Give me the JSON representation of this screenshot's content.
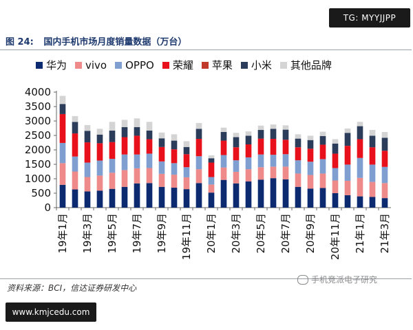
{
  "badge_text": "TG: MYYJJPP",
  "figure": {
    "number": "图 24:",
    "title": "国内手机市场月度销量数据（万台）"
  },
  "source_text": "资料来源：BCI，信达证券研发中心",
  "watermark_text": "手机竞派电子研究",
  "site_badge_text": "www.kmjcedu.com",
  "chart_data": {
    "type": "bar",
    "stacked": true,
    "ylim": [
      0,
      4000
    ],
    "yticks": [
      0,
      500,
      1000,
      1500,
      2000,
      2500,
      3000,
      3500,
      4000
    ],
    "grid": false,
    "legend_position": "top",
    "categories": [
      "19年1月",
      "19年2月",
      "19年3月",
      "19年4月",
      "19年5月",
      "19年6月",
      "19年7月",
      "19年8月",
      "19年9月",
      "19年10月",
      "19年11月",
      "19年12月",
      "20年1月",
      "20年2月",
      "20年3月",
      "20年4月",
      "20年5月",
      "20年6月",
      "20年7月",
      "20年8月",
      "20年9月",
      "20年10月",
      "20年11月",
      "20年12月",
      "21年1月",
      "21年2月",
      "21年3月"
    ],
    "tick_labels": [
      "19年1月",
      "",
      "19年3月",
      "",
      "19年5月",
      "",
      "19年7月",
      "",
      "19年9月",
      "",
      "19年11月",
      "",
      "20年1月",
      "",
      "20年3月",
      "",
      "20年5月",
      "",
      "20年7月",
      "",
      "20年9月",
      "",
      "20年11月",
      "",
      "21年1月",
      "",
      "21年3月"
    ],
    "series": [
      {
        "name": "华为",
        "color": "#0b2a6f",
        "values": [
          790,
          630,
          560,
          590,
          650,
          720,
          840,
          850,
          720,
          690,
          640,
          850,
          520,
          960,
          840,
          910,
          970,
          1020,
          980,
          720,
          660,
          680,
          500,
          430,
          390,
          370,
          330
        ]
      },
      {
        "name": "vivo",
        "color": "#ef8a8a",
        "values": [
          750,
          620,
          500,
          520,
          560,
          580,
          520,
          520,
          450,
          450,
          410,
          480,
          280,
          430,
          400,
          420,
          430,
          400,
          440,
          460,
          470,
          500,
          440,
          500,
          640,
          520,
          520
        ]
      },
      {
        "name": "OPPO",
        "color": "#7f9fd0",
        "values": [
          700,
          520,
          500,
          520,
          480,
          540,
          480,
          500,
          430,
          400,
          350,
          450,
          260,
          430,
          400,
          410,
          440,
          410,
          430,
          460,
          460,
          500,
          430,
          560,
          690,
          600,
          560
        ]
      },
      {
        "name": "荣耀",
        "color": "#e8101a",
        "values": [
          1000,
          800,
          700,
          600,
          580,
          600,
          650,
          500,
          500,
          480,
          450,
          600,
          500,
          500,
          450,
          450,
          550,
          550,
          500,
          450,
          450,
          500,
          500,
          650,
          650,
          600,
          560
        ]
      },
      {
        "name": "苹果",
        "color": "#c0392b",
        "values": [
          0,
          0,
          0,
          0,
          0,
          0,
          0,
          0,
          0,
          0,
          0,
          0,
          0,
          0,
          0,
          0,
          0,
          0,
          0,
          0,
          0,
          0,
          0,
          0,
          0,
          0,
          0
        ]
      },
      {
        "name": "小米",
        "color": "#2b3d5a",
        "values": [
          350,
          400,
          400,
          300,
          400,
          350,
          300,
          300,
          300,
          300,
          250,
          350,
          150,
          300,
          350,
          300,
          300,
          350,
          350,
          300,
          300,
          300,
          350,
          450,
          450,
          400,
          450
        ]
      },
      {
        "name": "其他品牌",
        "color": "#d4d4d4",
        "values": [
          280,
          200,
          200,
          200,
          300,
          250,
          300,
          300,
          200,
          220,
          200,
          200,
          100,
          150,
          150,
          150,
          150,
          150,
          150,
          150,
          150,
          150,
          150,
          150,
          150,
          200,
          200
        ]
      }
    ]
  }
}
